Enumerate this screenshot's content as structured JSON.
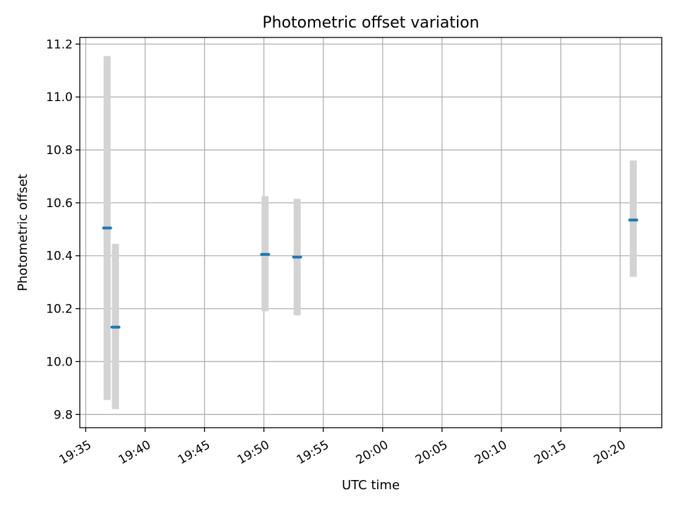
{
  "chart_data": {
    "type": "scatter",
    "title": "Photometric offset variation",
    "xlabel": "UTC time",
    "ylabel": "Photometric offset",
    "x_ticks": [
      "19:35",
      "19:40",
      "19:45",
      "19:50",
      "19:55",
      "20:00",
      "20:05",
      "20:10",
      "20:15",
      "20:20"
    ],
    "x_tick_minutes": [
      0,
      5,
      10,
      15,
      20,
      25,
      30,
      35,
      40,
      45
    ],
    "y_ticks": [
      9.8,
      10.0,
      10.2,
      10.4,
      10.6,
      10.8,
      11.0,
      11.2
    ],
    "xlim": [
      "19:34.5",
      "20:23.5"
    ],
    "ylim": [
      9.75,
      11.225
    ],
    "grid": true,
    "series": [
      {
        "x": [
          "19:36.8",
          "19:37.5",
          "19:50.1",
          "19:52.8",
          "20:21.1"
        ],
        "x_minutes": [
          1.8,
          2.5,
          15.1,
          17.8,
          46.1
        ],
        "y": [
          10.505,
          10.13,
          10.405,
          10.395,
          10.535
        ],
        "error_low": [
          9.855,
          9.82,
          10.19,
          10.175,
          10.32
        ],
        "error_high": [
          11.155,
          10.445,
          10.625,
          10.615,
          10.76
        ]
      }
    ],
    "colors": {
      "point": "#1f77b4",
      "error_bar": "#d3d3d3",
      "grid": "#b0b0b0",
      "axes": "#000000"
    }
  }
}
